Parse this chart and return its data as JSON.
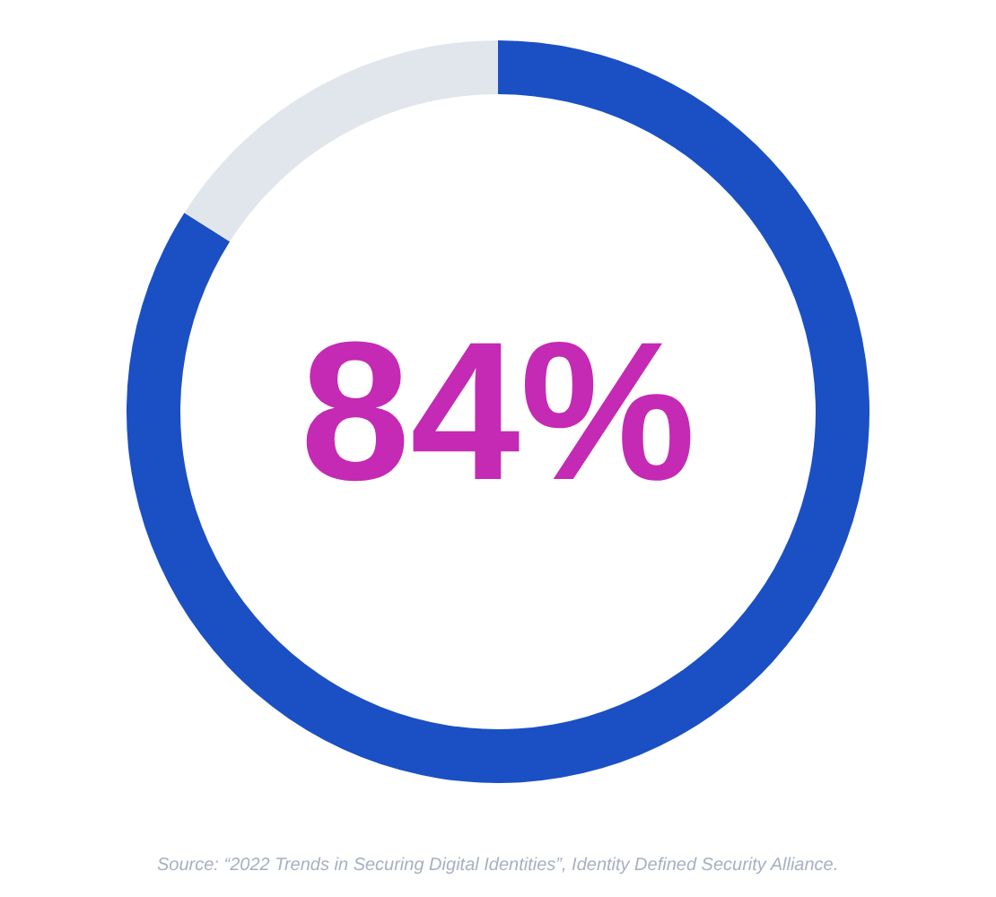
{
  "chart_data": {
    "type": "donut",
    "categories": [
      null,
      null
    ],
    "values": [
      84,
      16
    ],
    "colors": [
      "#1b4fc4",
      "#e1e6ed"
    ],
    "value_labels": [
      "84%",
      null
    ],
    "annotations": [
      "Source: “2022 Trends in Securing Digital Identities”, Identity Defined Security Alliance."
    ]
  }
}
